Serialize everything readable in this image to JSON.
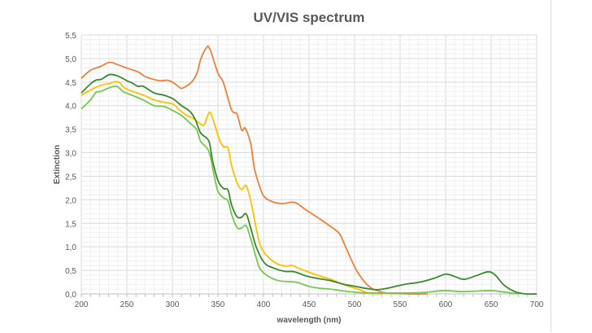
{
  "chart_data": {
    "type": "line",
    "title": "UV/VIS spectrum",
    "xlabel": "wavelength (nm)",
    "ylabel": "Extinction",
    "xlim": [
      200,
      700
    ],
    "ylim": [
      0,
      5.5
    ],
    "xticks": [
      "200",
      "250",
      "300",
      "350",
      "400",
      "450",
      "500",
      "550",
      "600",
      "650",
      "700"
    ],
    "yticks": [
      "0,0",
      "0,5",
      "1,0",
      "1,5",
      "2,0",
      "2,5",
      "3,0",
      "3,5",
      "4,0",
      "4,5",
      "5,0",
      "5,5"
    ],
    "grid": true,
    "legend": "none",
    "series": [
      {
        "color": "#F07F38",
        "points": [
          [
            200,
            4.58
          ],
          [
            210,
            4.75
          ],
          [
            221,
            4.83
          ],
          [
            231,
            4.92
          ],
          [
            240,
            4.87
          ],
          [
            251,
            4.79
          ],
          [
            262,
            4.72
          ],
          [
            271,
            4.61
          ],
          [
            286,
            4.53
          ],
          [
            294,
            4.54
          ],
          [
            300,
            4.5
          ],
          [
            307,
            4.4
          ],
          [
            311,
            4.37
          ],
          [
            321,
            4.5
          ],
          [
            327,
            4.69
          ],
          [
            331,
            4.98
          ],
          [
            337,
            5.22
          ],
          [
            341,
            5.21
          ],
          [
            350,
            4.69
          ],
          [
            356,
            4.49
          ],
          [
            365,
            3.91
          ],
          [
            371,
            3.82
          ],
          [
            376,
            3.48
          ],
          [
            380,
            3.52
          ],
          [
            386,
            3.19
          ],
          [
            390,
            2.67
          ],
          [
            396,
            2.27
          ],
          [
            401,
            2.06
          ],
          [
            411,
            1.95
          ],
          [
            422,
            1.92
          ],
          [
            431,
            1.95
          ],
          [
            437,
            1.92
          ],
          [
            447,
            1.78
          ],
          [
            459,
            1.63
          ],
          [
            471,
            1.47
          ],
          [
            483,
            1.29
          ],
          [
            489,
            1.05
          ],
          [
            501,
            0.54
          ],
          [
            510,
            0.28
          ],
          [
            518,
            0.13
          ],
          [
            528,
            0.05
          ],
          [
            536,
            0.02
          ],
          [
            560,
            0.0
          ],
          [
            580,
            0.0
          ]
        ]
      },
      {
        "color": "#FFC000",
        "points": [
          [
            200,
            4.22
          ],
          [
            210,
            4.33
          ],
          [
            221,
            4.43
          ],
          [
            231,
            4.47
          ],
          [
            237,
            4.51
          ],
          [
            242,
            4.49
          ],
          [
            248,
            4.37
          ],
          [
            260,
            4.28
          ],
          [
            271,
            4.2
          ],
          [
            280,
            4.12
          ],
          [
            291,
            4.07
          ],
          [
            301,
            4.03
          ],
          [
            307,
            3.92
          ],
          [
            316,
            3.79
          ],
          [
            322,
            3.74
          ],
          [
            331,
            3.61
          ],
          [
            335,
            3.6
          ],
          [
            341,
            3.86
          ],
          [
            346,
            3.62
          ],
          [
            352,
            3.26
          ],
          [
            356,
            3.13
          ],
          [
            361,
            3.1
          ],
          [
            365,
            2.73
          ],
          [
            371,
            2.36
          ],
          [
            376,
            2.22
          ],
          [
            381,
            2.3
          ],
          [
            386,
            1.98
          ],
          [
            392,
            1.4
          ],
          [
            396,
            1.06
          ],
          [
            402,
            0.85
          ],
          [
            414,
            0.65
          ],
          [
            425,
            0.59
          ],
          [
            431,
            0.61
          ],
          [
            438,
            0.55
          ],
          [
            450,
            0.46
          ],
          [
            462,
            0.38
          ],
          [
            474,
            0.31
          ],
          [
            489,
            0.19
          ],
          [
            504,
            0.1
          ],
          [
            512,
            0.04
          ],
          [
            520,
            0.01
          ],
          [
            530,
            0.0
          ]
        ]
      },
      {
        "color": "#3A8A2E",
        "points": [
          [
            200,
            4.27
          ],
          [
            210,
            4.46
          ],
          [
            216,
            4.54
          ],
          [
            222,
            4.56
          ],
          [
            231,
            4.66
          ],
          [
            240,
            4.63
          ],
          [
            251,
            4.52
          ],
          [
            255,
            4.49
          ],
          [
            262,
            4.41
          ],
          [
            268,
            4.41
          ],
          [
            280,
            4.27
          ],
          [
            291,
            4.22
          ],
          [
            301,
            4.14
          ],
          [
            310,
            4.0
          ],
          [
            319,
            3.88
          ],
          [
            325,
            3.71
          ],
          [
            331,
            3.42
          ],
          [
            340,
            3.25
          ],
          [
            344,
            2.84
          ],
          [
            350,
            2.41
          ],
          [
            356,
            2.24
          ],
          [
            361,
            2.21
          ],
          [
            365,
            1.89
          ],
          [
            371,
            1.64
          ],
          [
            376,
            1.63
          ],
          [
            381,
            1.7
          ],
          [
            386,
            1.4
          ],
          [
            392,
            1.0
          ],
          [
            401,
            0.66
          ],
          [
            411,
            0.55
          ],
          [
            423,
            0.48
          ],
          [
            434,
            0.47
          ],
          [
            447,
            0.38
          ],
          [
            459,
            0.33
          ],
          [
            474,
            0.28
          ],
          [
            489,
            0.2
          ],
          [
            501,
            0.16
          ],
          [
            512,
            0.12
          ],
          [
            524,
            0.09
          ],
          [
            536,
            0.12
          ],
          [
            547,
            0.17
          ],
          [
            557,
            0.21
          ],
          [
            572,
            0.25
          ],
          [
            587,
            0.33
          ],
          [
            600,
            0.42
          ],
          [
            610,
            0.37
          ],
          [
            620,
            0.31
          ],
          [
            634,
            0.39
          ],
          [
            647,
            0.47
          ],
          [
            655,
            0.39
          ],
          [
            664,
            0.19
          ],
          [
            676,
            0.05
          ],
          [
            688,
            0.0
          ],
          [
            700,
            0.0
          ]
        ]
      },
      {
        "color": "#72C94C",
        "points": [
          [
            200,
            3.93
          ],
          [
            210,
            4.12
          ],
          [
            216,
            4.28
          ],
          [
            221,
            4.3
          ],
          [
            227,
            4.35
          ],
          [
            236,
            4.41
          ],
          [
            240,
            4.4
          ],
          [
            246,
            4.3
          ],
          [
            257,
            4.21
          ],
          [
            268,
            4.12
          ],
          [
            280,
            4.0
          ],
          [
            291,
            3.98
          ],
          [
            301,
            3.89
          ],
          [
            310,
            3.79
          ],
          [
            321,
            3.6
          ],
          [
            327,
            3.48
          ],
          [
            331,
            3.24
          ],
          [
            340,
            3.03
          ],
          [
            346,
            2.5
          ],
          [
            350,
            2.18
          ],
          [
            356,
            2.04
          ],
          [
            361,
            1.98
          ],
          [
            365,
            1.69
          ],
          [
            371,
            1.41
          ],
          [
            376,
            1.4
          ],
          [
            381,
            1.45
          ],
          [
            386,
            1.17
          ],
          [
            392,
            0.77
          ],
          [
            396,
            0.54
          ],
          [
            404,
            0.39
          ],
          [
            417,
            0.28
          ],
          [
            431,
            0.26
          ],
          [
            438,
            0.24
          ],
          [
            450,
            0.16
          ],
          [
            462,
            0.12
          ],
          [
            474,
            0.1
          ],
          [
            489,
            0.06
          ],
          [
            504,
            0.03
          ],
          [
            520,
            0.02
          ],
          [
            550,
            0.02
          ],
          [
            575,
            0.03
          ],
          [
            598,
            0.07
          ],
          [
            617,
            0.05
          ],
          [
            634,
            0.06
          ],
          [
            650,
            0.07
          ],
          [
            664,
            0.04
          ],
          [
            680,
            0.0
          ]
        ]
      }
    ]
  }
}
